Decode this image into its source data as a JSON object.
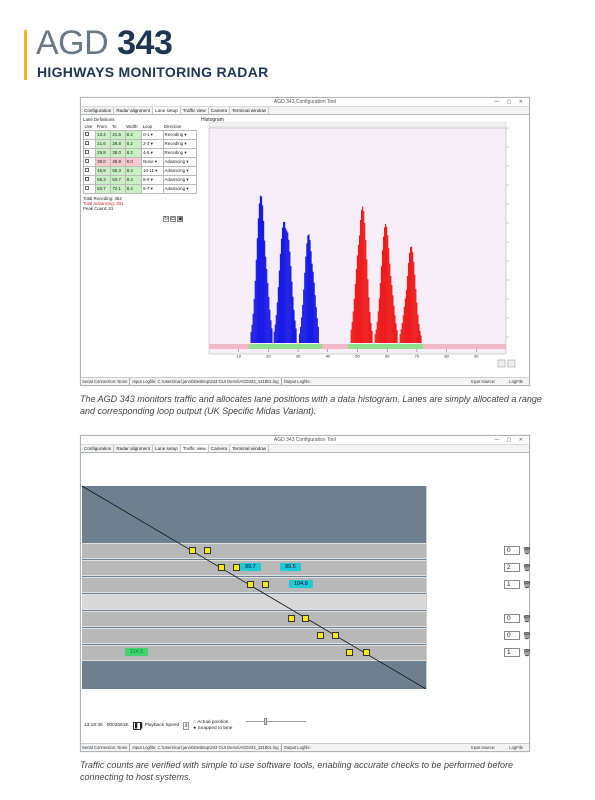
{
  "header": {
    "brand_light": "AGD",
    "brand_bold": "343",
    "subtitle": "HIGHWAYS MONITORING RADAR"
  },
  "win1": {
    "title": "AGD 343 Configuration Tool",
    "tabs": [
      "Configuration",
      "Radar alignment",
      "Lane setup",
      "Traffic view",
      "Camera",
      "Terminal window"
    ],
    "active_tab": "Lane setup",
    "lane_defs_label": "Lane Definitions",
    "histogram_label": "Histogram",
    "columns": [
      "Use",
      "From",
      "To",
      "Width",
      "Loop",
      "Direction"
    ],
    "lanes": [
      {
        "from": "13.4",
        "to": "21.6",
        "width": "8.2",
        "loop": "0-1",
        "dir": "Receding",
        "state": "rec"
      },
      {
        "from": "21.6",
        "to": "29.8",
        "width": "8.2",
        "loop": "2-3",
        "dir": "Receding",
        "state": "rec"
      },
      {
        "from": "29.8",
        "to": "38.0",
        "width": "8.2",
        "loop": "4-5",
        "dir": "Receding",
        "state": "rec"
      },
      {
        "from": "38.0",
        "to": "46.9",
        "width": "9.0",
        "loop": "None",
        "dir": "Advancing",
        "state": "none"
      },
      {
        "from": "46.9",
        "to": "55.3",
        "width": "8.4",
        "loop": "10-11",
        "dir": "Advancing",
        "state": "adv"
      },
      {
        "from": "55.3",
        "to": "63.7",
        "width": "8.4",
        "loop": "8-9",
        "dir": "Advancing",
        "state": "adv"
      },
      {
        "from": "63.7",
        "to": "72.1",
        "width": "8.4",
        "loop": "6-7",
        "dir": "Advancing",
        "state": "adv"
      }
    ],
    "total_receding": "Total Receding:  452",
    "total_advancing": "Total Advancing:  334",
    "peak_count": "Peak Count:        31",
    "x_ticks": [
      "10",
      "20",
      "30",
      "40",
      "50",
      "60",
      "70",
      "80",
      "90"
    ],
    "status": {
      "serial": "Serial Connection: None",
      "input": "Input Logfile: C:\\Users\\carl.jarvis\\Desktop\\343 GUI Demo\\AGD343_131801.log",
      "output": "Output Logfile:",
      "source": "Input source:",
      "source_val": "LogFile"
    }
  },
  "caption1": "The AGD 343 monitors traffic and allocates lane positions with a data histogram. Lanes are simply allocated a range and corresponding loop output (UK Specific Midas Variant).",
  "win2": {
    "title": "AGD 343 Configuration Tool",
    "tabs": [
      "Configuration",
      "Radar alignment",
      "Lane setup",
      "Traffic view",
      "Camera",
      "Terminal window"
    ],
    "active_tab": "Traffic view",
    "speeds": [
      {
        "v": "99.7",
        "style": "c"
      },
      {
        "v": "99.5",
        "style": "c"
      },
      {
        "v": "104.8",
        "style": "c"
      },
      {
        "v": "114.5",
        "style": "g"
      }
    ],
    "counts": [
      "0",
      "2",
      "1",
      "0",
      "0",
      "1"
    ],
    "time": "13:18:36",
    "frame": "0002661E",
    "playback_label": "Playback Speed",
    "radio_actual": "Actual position",
    "radio_snapped": "Snapped to lane",
    "status": {
      "serial": "Serial Connection: None",
      "input": "Input Logfile: C:\\Users\\carl.jarvis\\Desktop\\343 GUI Demo\\AGD343_131801.log",
      "output": "Output Logfile:",
      "source": "Input source:",
      "source_val": "LogFile"
    }
  },
  "caption2": "Traffic counts are verified with simple to use software tools, enabling accurate checks to be performed before connecting to host systems.",
  "colors": {
    "accent": "#f3b523",
    "navy": "#1f3550",
    "receding": "#1a1ae6",
    "advancing": "#ee1c1c"
  }
}
